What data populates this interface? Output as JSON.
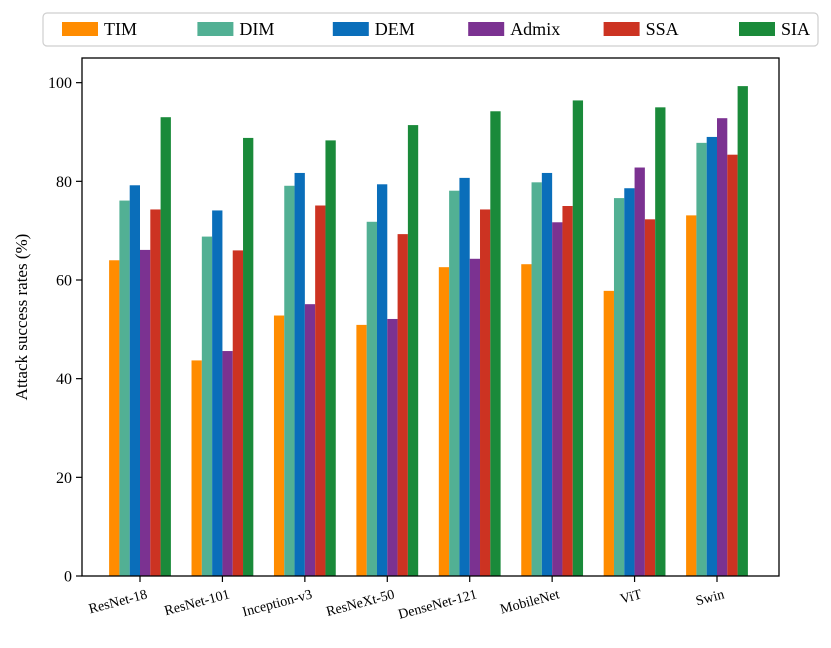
{
  "chart_data": {
    "type": "bar",
    "title": "",
    "xlabel": "",
    "ylabel": "Attack success rates (%)",
    "ylim": [
      0,
      105
    ],
    "yticks": [
      0,
      20,
      40,
      60,
      80,
      100
    ],
    "grid": false,
    "legend_position": "top",
    "categories": [
      "ResNet-18",
      "ResNet-101",
      "Inception-v3",
      "ResNeXt-50",
      "DenseNet-121",
      "MobileNet",
      "ViT",
      "Swin"
    ],
    "series": [
      {
        "name": "TIM",
        "color": "#ff8c00",
        "values": [
          64.0,
          43.7,
          52.8,
          50.9,
          62.6,
          63.2,
          57.8,
          73.1
        ]
      },
      {
        "name": "DIM",
        "color": "#52b094",
        "values": [
          76.1,
          68.8,
          79.1,
          71.8,
          78.1,
          79.8,
          76.6,
          87.8
        ]
      },
      {
        "name": "DEM",
        "color": "#0a6eba",
        "values": [
          79.2,
          74.1,
          81.7,
          79.4,
          80.7,
          81.7,
          78.6,
          89.0
        ]
      },
      {
        "name": "Admix",
        "color": "#7b3291",
        "values": [
          66.1,
          45.6,
          55.1,
          52.1,
          64.3,
          71.7,
          82.8,
          92.8
        ]
      },
      {
        "name": "SSA",
        "color": "#cc3322",
        "values": [
          74.3,
          66.0,
          75.1,
          69.3,
          74.3,
          75.0,
          72.3,
          85.4
        ]
      },
      {
        "name": "SIA",
        "color": "#1a8a3a",
        "values": [
          93.0,
          88.8,
          88.3,
          91.4,
          94.2,
          96.4,
          95.0,
          99.3
        ]
      }
    ]
  }
}
